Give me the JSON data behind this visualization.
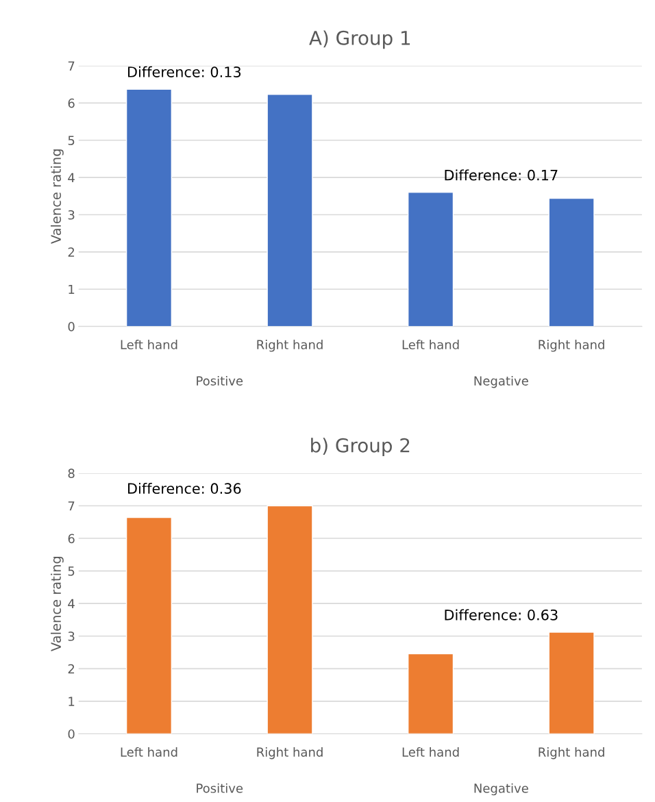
{
  "chart_data": [
    {
      "type": "bar",
      "title": "A) Group 1",
      "ylabel": "Valence rating",
      "categories": [
        "Left hand",
        "Right hand",
        "Left hand",
        "Right hand"
      ],
      "values": [
        6.37,
        6.23,
        3.6,
        3.44
      ],
      "color": "#4472c4",
      "ylim": [
        0,
        7
      ],
      "yticks": [
        0,
        1,
        2,
        3,
        4,
        5,
        6,
        7
      ],
      "grid": "y",
      "annotations": [
        "Difference: 0.13",
        "Difference: 0.17",
        "Positive",
        "Negative"
      ]
    },
    {
      "type": "bar",
      "title": "b) Group 2",
      "ylabel": "Valence rating",
      "categories": [
        "Left hand",
        "Right hand",
        "Left hand",
        "Right hand"
      ],
      "values": [
        6.64,
        7.0,
        2.46,
        3.12
      ],
      "color": "#ed7d31",
      "ylim": [
        0,
        8
      ],
      "yticks": [
        0,
        1,
        2,
        3,
        4,
        5,
        6,
        7,
        8
      ],
      "grid": "y",
      "annotations": [
        "Difference: 0.36",
        "Difference: 0.63",
        "Positive",
        "Negative"
      ]
    }
  ]
}
